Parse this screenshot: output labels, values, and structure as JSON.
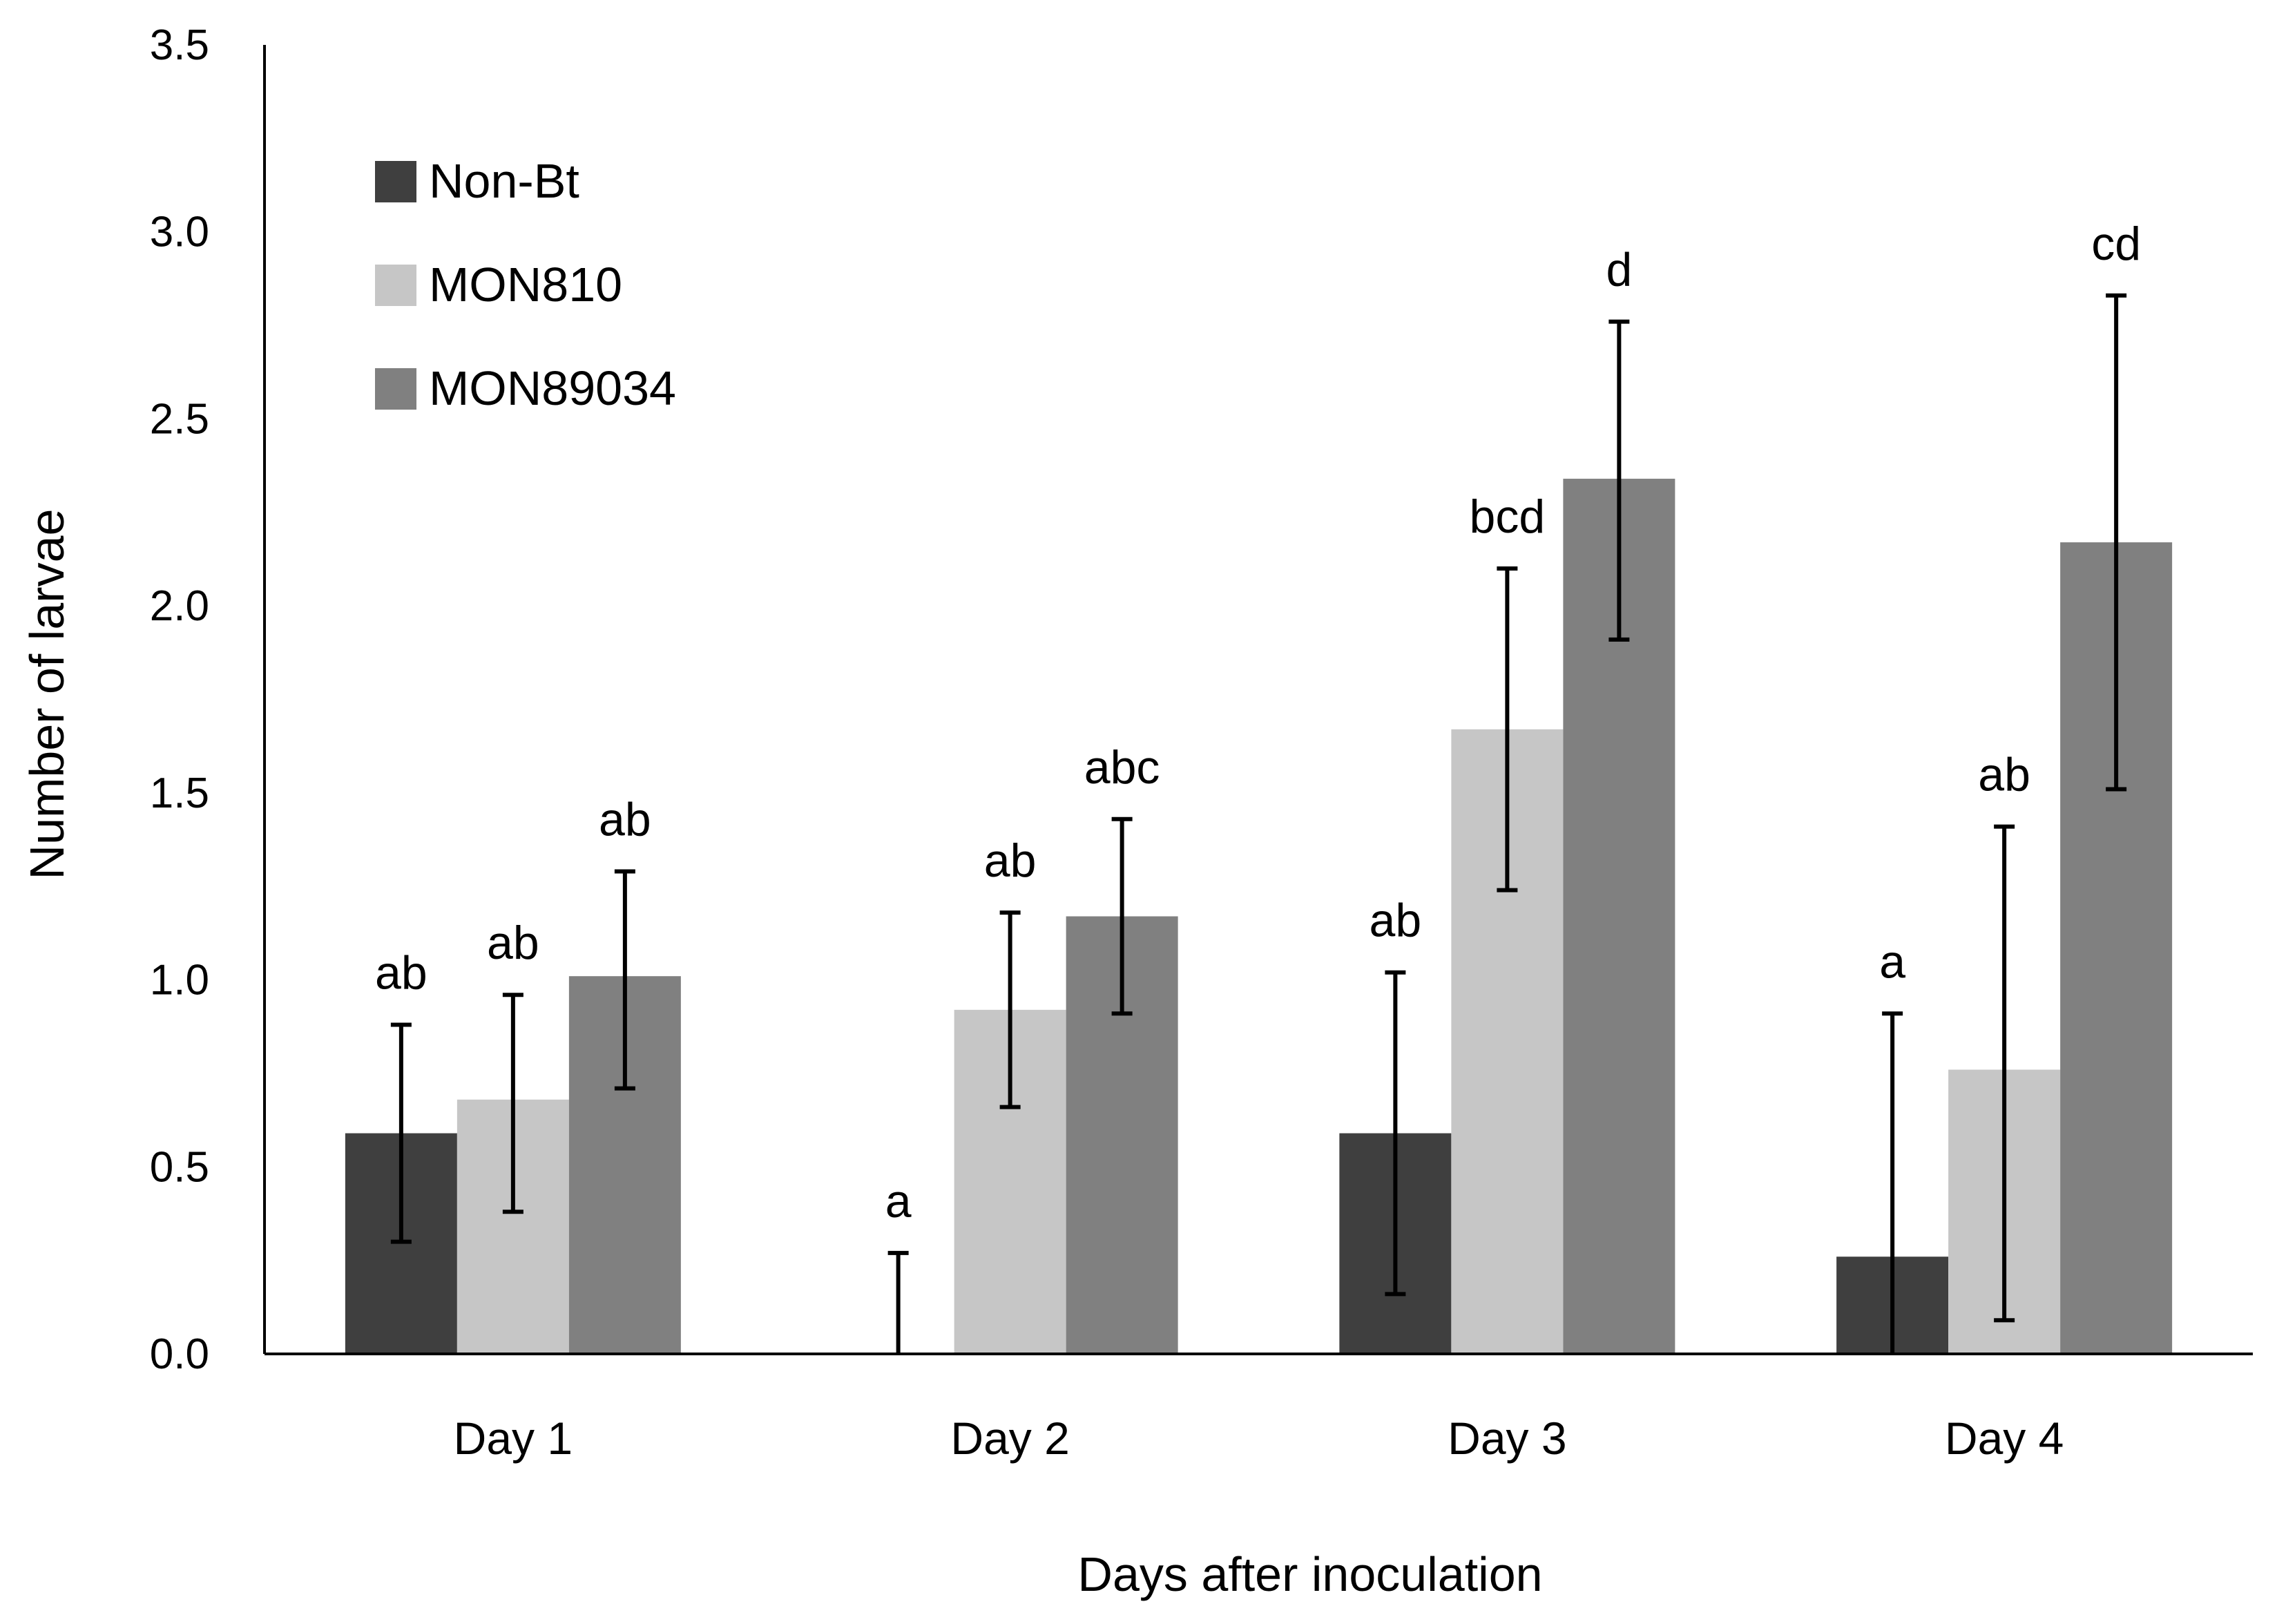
{
  "chart_data": {
    "type": "bar",
    "title": "",
    "xlabel": "Days after inoculation",
    "ylabel": "Number of larvae",
    "ylim": [
      0,
      3.5
    ],
    "yticks": [
      0.0,
      0.5,
      1.0,
      1.5,
      2.0,
      2.5,
      3.0,
      3.5
    ],
    "ytick_labels": [
      "0.0",
      "0.5",
      "1.0",
      "1.5",
      "2.0",
      "2.5",
      "3.0",
      "3.5"
    ],
    "grid": false,
    "legend_position": "top-left",
    "categories": [
      "Day 1",
      "Day 2",
      "Day 3",
      "Day 4"
    ],
    "series": [
      {
        "name": "Non-Bt",
        "color": "#3f3f3f",
        "values": [
          0.59,
          0.0,
          0.59,
          0.26
        ],
        "err_low": [
          0.3,
          0.0,
          0.16,
          0.0
        ],
        "err_high": [
          0.88,
          0.27,
          1.02,
          0.91
        ],
        "letters": [
          "ab",
          "a",
          "ab",
          "a"
        ]
      },
      {
        "name": "MON810",
        "color": "#c6c6c6",
        "values": [
          0.68,
          0.92,
          1.67,
          0.76
        ],
        "err_low": [
          0.38,
          0.66,
          1.24,
          0.09
        ],
        "err_high": [
          0.96,
          1.18,
          2.1,
          1.41
        ],
        "letters": [
          "ab",
          "ab",
          "bcd",
          "ab"
        ]
      },
      {
        "name": "MON89034",
        "color": "#808080",
        "values": [
          1.01,
          1.17,
          2.34,
          2.17
        ],
        "err_low": [
          0.71,
          0.91,
          1.91,
          1.51
        ],
        "err_high": [
          1.29,
          1.43,
          2.76,
          2.83
        ],
        "letters": [
          "ab",
          "abc",
          "d",
          "cd"
        ]
      }
    ]
  }
}
